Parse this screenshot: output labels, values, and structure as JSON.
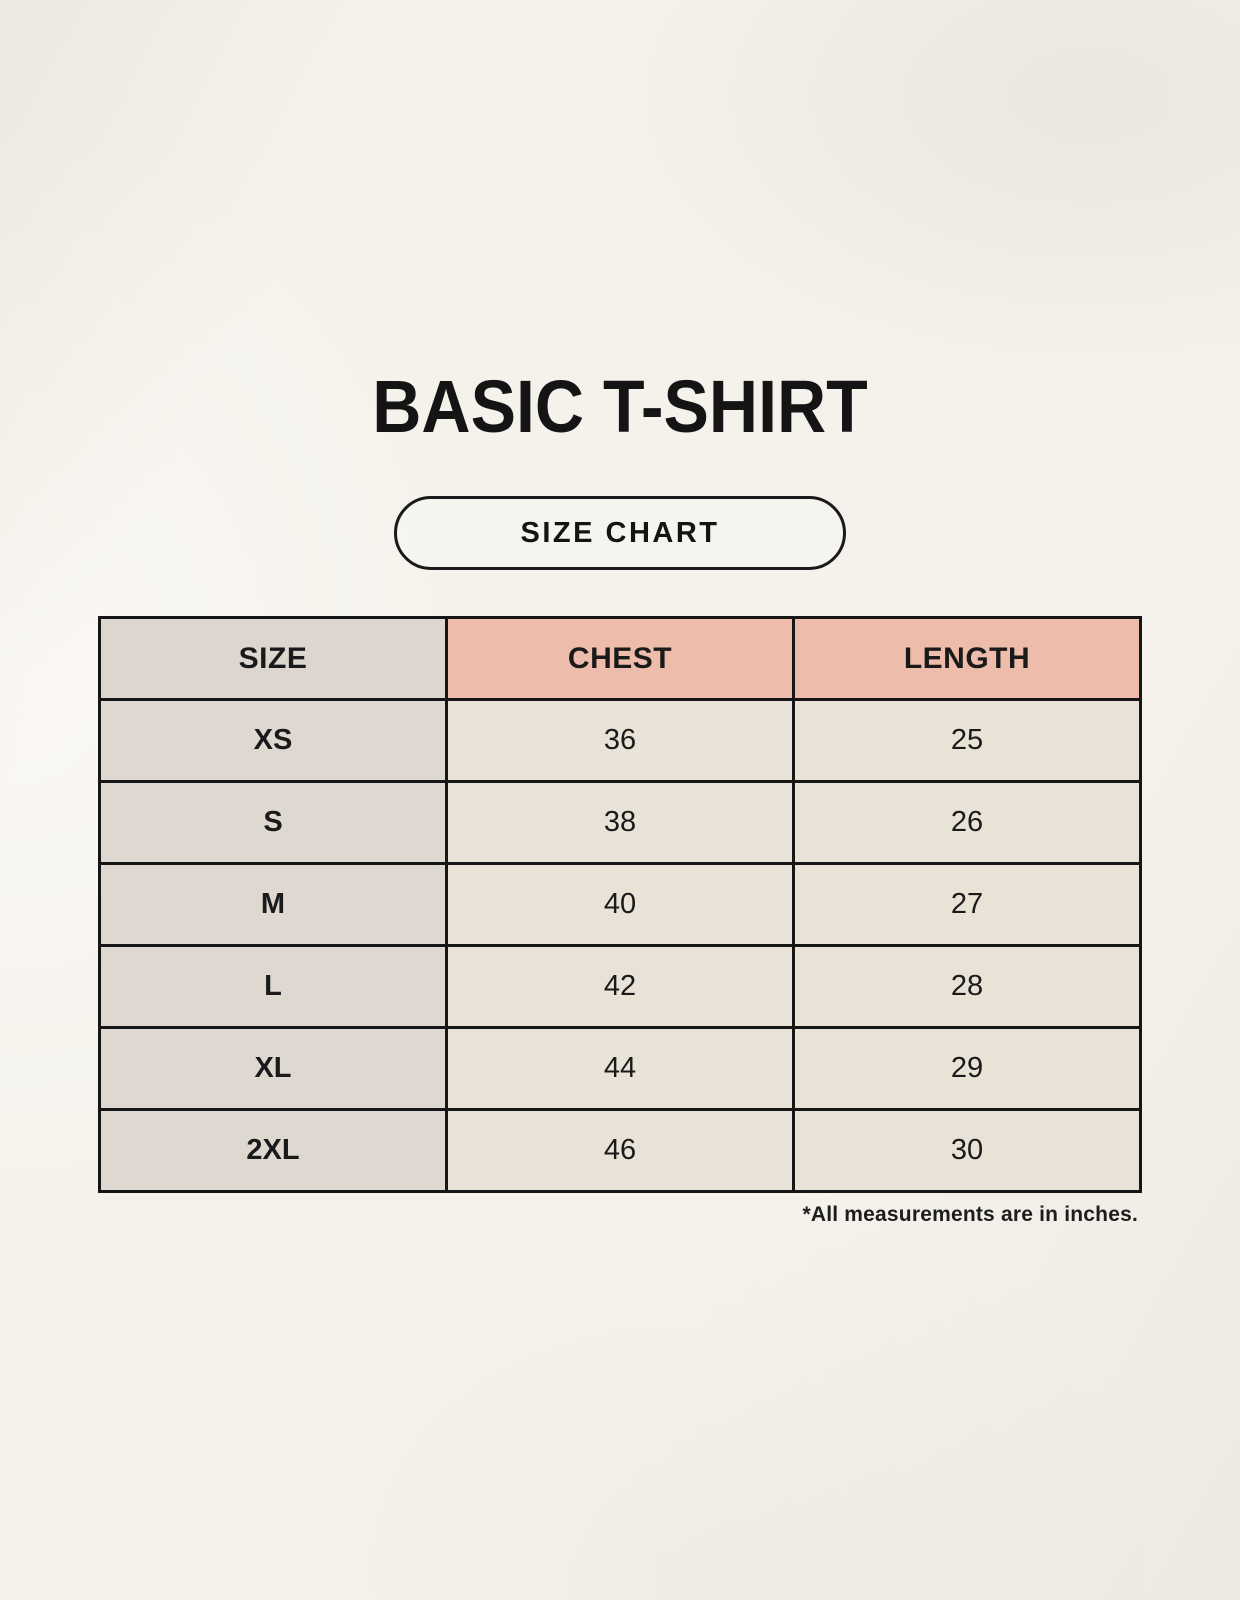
{
  "page": {
    "title": "BASIC T-SHIRT",
    "size_chart_label": "SIZE CHART",
    "footnote": "*All measurements are in inches."
  },
  "colors": {
    "page_background": "#f5f2ec",
    "table_border": "#161616",
    "size_header_bg": "#dcd6cf",
    "accent_header_bg": "#eebcab",
    "size_column_bg": "#ded8d1",
    "value_cell_bg": "#e9e2d6",
    "text": "#1a1a1a"
  },
  "chart_data": {
    "type": "table",
    "title": "BASIC T-SHIRT",
    "subtitle": "SIZE CHART",
    "columns": [
      "SIZE",
      "CHEST",
      "LENGTH"
    ],
    "rows": [
      [
        "XS",
        36,
        25
      ],
      [
        "S",
        38,
        26
      ],
      [
        "M",
        40,
        27
      ],
      [
        "L",
        42,
        28
      ],
      [
        "XL",
        44,
        29
      ],
      [
        "2XL",
        46,
        30
      ]
    ],
    "units": "inches",
    "footnote": "*All measurements are in inches."
  }
}
